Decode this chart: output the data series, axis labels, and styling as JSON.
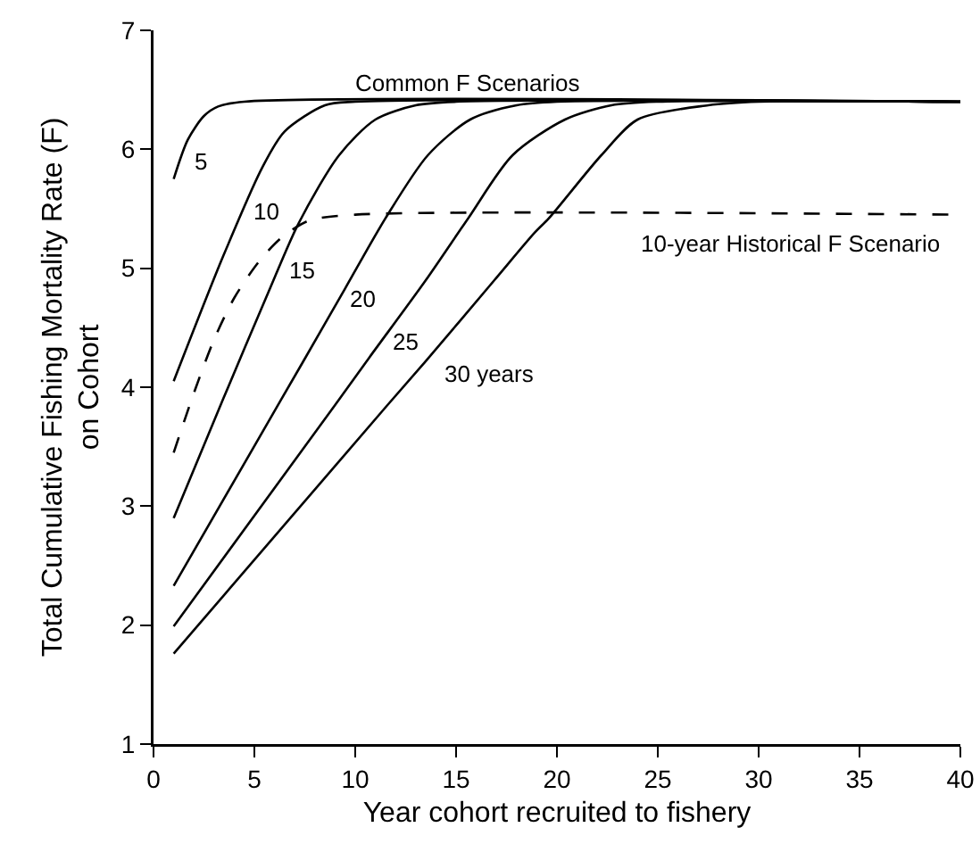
{
  "chart_data": {
    "type": "line",
    "xlabel": "Year cohort recruited to fishery",
    "ylabel": "Total Cumulative Fishing Mortality Rate (F)\non Cohort",
    "xlim": [
      0,
      40
    ],
    "xticks": [
      0,
      5,
      10,
      15,
      20,
      25,
      30,
      35,
      40
    ],
    "ylim": [
      1,
      7
    ],
    "yticks": [
      1,
      2,
      3,
      4,
      5,
      6,
      7
    ],
    "grid": false,
    "legend": false,
    "marker": "none",
    "color": "#000000",
    "series": [
      {
        "name": "5",
        "x": [
          1,
          1.7,
          2.5,
          3.2,
          4.5,
          40
        ],
        "values": [
          5.75,
          6.08,
          6.28,
          6.36,
          6.4,
          6.4
        ]
      },
      {
        "name": "10",
        "x": [
          1,
          3.45,
          5.4,
          6.5,
          8.5,
          10,
          40
        ],
        "values": [
          4.05,
          5.1,
          5.85,
          6.15,
          6.37,
          6.4,
          6.4
        ]
      },
      {
        "name": "15",
        "x": [
          1,
          3.45,
          5.7,
          7.2,
          9.2,
          11,
          13,
          15,
          40
        ],
        "values": [
          2.9,
          3.9,
          4.8,
          5.38,
          5.95,
          6.25,
          6.37,
          6.4,
          6.4
        ]
      },
      {
        "name": "20",
        "x": [
          1,
          5.9,
          7.4,
          9.5,
          11.5,
          13.6,
          15.7,
          18,
          20,
          40
        ],
        "values": [
          2.33,
          3.77,
          4.21,
          4.83,
          5.42,
          5.95,
          6.25,
          6.37,
          6.4,
          6.4
        ]
      },
      {
        "name": "25",
        "x": [
          1,
          9,
          10.7,
          13.5,
          15.6,
          17.8,
          20.4,
          22.7,
          25,
          40
        ],
        "values": [
          1.99,
          3.85,
          4.25,
          4.9,
          5.42,
          5.95,
          6.25,
          6.37,
          6.4,
          6.4
        ]
      },
      {
        "name": "30 years",
        "x": [
          1,
          11.6,
          13.4,
          16.9,
          18.9,
          19.6,
          22.2,
          24,
          27.5,
          30,
          40
        ],
        "values": [
          1.76,
          3.85,
          4.2,
          4.9,
          5.3,
          5.42,
          5.95,
          6.25,
          6.37,
          6.4,
          6.4
        ]
      },
      {
        "name": "10-year Historical F Scenario",
        "x": [
          1,
          2,
          3,
          4,
          5.2,
          6.3,
          7.7,
          10,
          40
        ],
        "values": [
          3.45,
          3.95,
          4.4,
          4.75,
          5.05,
          5.25,
          5.4,
          5.45,
          5.45
        ],
        "line_style": "dashed"
      }
    ],
    "annotations": [
      "Common F Scenarios"
    ]
  }
}
